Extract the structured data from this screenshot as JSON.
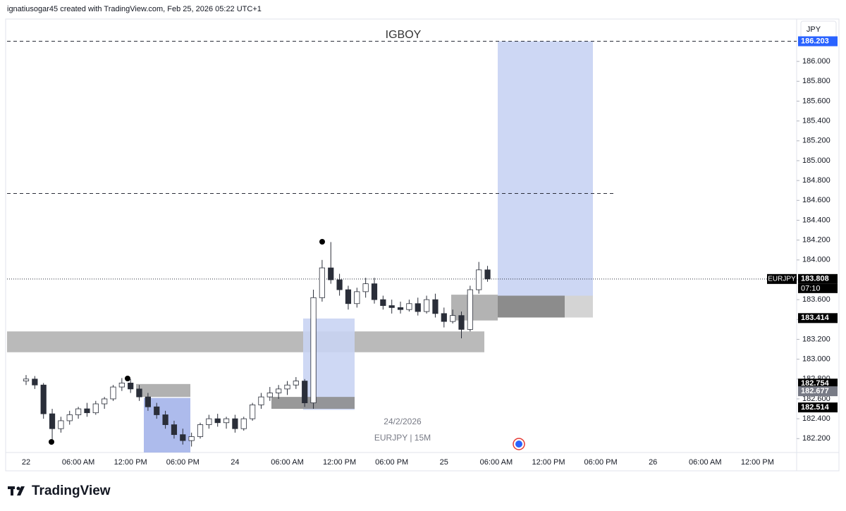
{
  "header": "ignatiusogar45 created with TradingView.com, Feb 25, 2026 05:22 UTC+1",
  "brand": "TradingView",
  "chart_data": {
    "type": "candlestick",
    "title": "IGBOY",
    "currency": "JPY",
    "watermark": [
      "24/2/2026",
      "EURJPY | 15M"
    ],
    "symbol": "EURJPY",
    "countdown": "07:10",
    "categories": [
      "22",
      null,
      null,
      null,
      null,
      null,
      "06:00 AM",
      null,
      null,
      null,
      null,
      null,
      "12:00 PM",
      null,
      null,
      null,
      null,
      null,
      "06:00 PM",
      null,
      null,
      null,
      null,
      null,
      "24",
      null,
      null,
      null,
      null,
      null,
      "06:00 AM",
      null,
      null,
      null,
      null,
      null,
      "12:00 PM",
      null,
      null,
      null,
      null,
      null,
      "06:00 PM",
      null,
      null,
      null,
      null,
      null,
      "25",
      null,
      null,
      null,
      null,
      null,
      "06:00 AM",
      null,
      null,
      null,
      null,
      null,
      "12:00 PM",
      null,
      null,
      null,
      null,
      null,
      "06:00 PM",
      null,
      null,
      null,
      null,
      null,
      "26",
      null,
      null,
      null,
      null,
      null,
      "06:00 AM",
      null,
      null,
      null,
      null,
      null,
      "12:00 PM",
      null,
      null,
      null
    ],
    "open": [
      182.78,
      182.8,
      182.74,
      182.45,
      182.3,
      182.38,
      182.44,
      182.5,
      182.46,
      182.55,
      182.6,
      182.72,
      182.76,
      182.7,
      182.62,
      182.52,
      182.44,
      182.34,
      182.24,
      182.18,
      182.22,
      182.34,
      182.4,
      182.36,
      182.4,
      182.3,
      182.4,
      182.54,
      182.62,
      182.66,
      182.7,
      182.74,
      182.78,
      182.56,
      183.62,
      183.92,
      183.8,
      183.7,
      183.56,
      183.68,
      183.76,
      183.6,
      183.54,
      183.52,
      183.5,
      183.56,
      183.48,
      183.6,
      183.46,
      183.38,
      183.44,
      183.3,
      183.7,
      183.9,
      null,
      null,
      null,
      null,
      null,
      null,
      null,
      null,
      null,
      null,
      null,
      null,
      null,
      null,
      null,
      null,
      null,
      null,
      null,
      null,
      null,
      null,
      null,
      null,
      null,
      null,
      null,
      null,
      null,
      null,
      null,
      null,
      null,
      null
    ],
    "high": [
      182.84,
      182.83,
      182.76,
      182.5,
      182.42,
      182.48,
      182.52,
      182.56,
      182.58,
      182.62,
      182.74,
      182.81,
      182.8,
      182.74,
      182.66,
      182.56,
      182.48,
      182.38,
      182.3,
      182.26,
      182.36,
      182.44,
      182.45,
      182.42,
      182.44,
      182.42,
      182.56,
      182.66,
      182.72,
      182.74,
      182.78,
      182.82,
      182.8,
      183.7,
      184.0,
      184.18,
      183.86,
      183.74,
      183.72,
      183.82,
      183.82,
      183.64,
      183.6,
      183.58,
      183.6,
      183.62,
      183.64,
      183.66,
      183.52,
      183.5,
      183.48,
      183.74,
      183.98,
      183.94,
      null,
      null,
      null,
      null,
      null,
      null,
      null,
      null,
      null,
      null,
      null,
      null,
      null,
      null,
      null,
      null,
      null,
      null,
      null,
      null,
      null,
      null,
      null,
      null,
      null,
      null,
      null,
      null,
      null,
      null,
      null,
      null,
      null,
      null
    ],
    "low": [
      182.74,
      182.7,
      182.4,
      182.17,
      182.26,
      182.34,
      182.4,
      182.42,
      182.44,
      182.5,
      182.58,
      182.68,
      182.66,
      182.58,
      182.48,
      182.4,
      182.3,
      182.2,
      182.14,
      182.12,
      182.2,
      182.3,
      182.32,
      182.3,
      182.26,
      182.28,
      182.38,
      182.5,
      182.58,
      182.6,
      182.64,
      182.7,
      182.52,
      182.5,
      183.58,
      183.76,
      183.64,
      183.5,
      183.52,
      183.62,
      183.56,
      183.5,
      183.46,
      183.46,
      183.48,
      183.44,
      183.46,
      183.42,
      183.32,
      183.36,
      183.21,
      183.28,
      183.66,
      183.78,
      null,
      null,
      null,
      null,
      null,
      null,
      null,
      null,
      null,
      null,
      null,
      null,
      null,
      null,
      null,
      null,
      null,
      null,
      null,
      null,
      null,
      null,
      null,
      null,
      null,
      null,
      null,
      null,
      null,
      null,
      null,
      null,
      null,
      null
    ],
    "close": [
      182.8,
      182.74,
      182.45,
      182.3,
      182.38,
      182.44,
      182.5,
      182.46,
      182.55,
      182.6,
      182.72,
      182.76,
      182.7,
      182.62,
      182.52,
      182.44,
      182.34,
      182.24,
      182.18,
      182.22,
      182.34,
      182.4,
      182.36,
      182.4,
      182.3,
      182.4,
      182.54,
      182.62,
      182.66,
      182.7,
      182.74,
      182.78,
      182.56,
      183.62,
      183.92,
      183.8,
      183.7,
      183.56,
      183.68,
      183.76,
      183.6,
      183.54,
      183.52,
      183.5,
      183.56,
      183.48,
      183.6,
      183.46,
      183.38,
      183.44,
      183.3,
      183.7,
      183.9,
      183.808,
      null,
      null,
      null,
      null,
      null,
      null,
      null,
      null,
      null,
      null,
      null,
      null,
      null,
      null,
      null,
      null,
      null,
      null,
      null,
      null,
      null,
      null,
      null,
      null,
      null,
      null,
      null,
      null,
      null,
      null,
      null,
      null,
      null,
      null
    ],
    "up_color": "#ffffff",
    "down_color": "#2a2e39",
    "wick_color": "#2a2e39",
    "ylim": [
      182.06,
      186.42
    ],
    "yticks": [
      {
        "value": 182.2,
        "label": "182.200"
      },
      {
        "value": 182.4,
        "label": "182.400"
      },
      {
        "value": 182.6,
        "label": "182.600"
      },
      {
        "value": 182.8,
        "label": "182.800"
      },
      {
        "value": 183.0,
        "label": "183.000"
      },
      {
        "value": 183.2,
        "label": "183.200"
      },
      {
        "value": 183.4,
        "label": "183.400"
      },
      {
        "value": 183.6,
        "label": "183.600"
      },
      {
        "value": 183.8,
        "label": "183.800"
      },
      {
        "value": 184.0,
        "label": "184.000"
      },
      {
        "value": 184.2,
        "label": "184.200"
      },
      {
        "value": 184.4,
        "label": "184.400"
      },
      {
        "value": 184.6,
        "label": "184.600"
      },
      {
        "value": 184.8,
        "label": "184.800"
      },
      {
        "value": 185.0,
        "label": "185.000"
      },
      {
        "value": 185.2,
        "label": "185.200"
      },
      {
        "value": 185.4,
        "label": "185.400"
      },
      {
        "value": 185.6,
        "label": "185.600"
      },
      {
        "value": 185.8,
        "label": "185.800"
      },
      {
        "value": 186.0,
        "label": "186.000"
      }
    ],
    "grid": false,
    "zones": [
      {
        "y": [
          183.07,
          183.28
        ],
        "color": "#b2b2b2"
      },
      {
        "y": [
          182.49,
          183.41
        ],
        "color": "#c9d4f3"
      },
      {
        "y": [
          182.5,
          182.62
        ],
        "color": "#8e8e8e"
      },
      {
        "y": [
          182.06,
          182.61
        ],
        "color": "#a4b4ea"
      },
      {
        "y": [
          182.62,
          182.75
        ],
        "color": "#a9a9a9"
      },
      {
        "y": [
          183.39,
          183.65
        ],
        "color": "#ababab"
      },
      {
        "y": [
          183.64,
          186.203
        ],
        "color": "#c8d3f3"
      },
      {
        "y": [
          183.42,
          183.64
        ],
        "color": "#7f7f7f"
      },
      {
        "y": [
          183.42,
          183.64
        ],
        "color": "#cfcfcf"
      }
    ],
    "levels": [
      186.203,
      184.67,
      183.808
    ],
    "price_labels": [
      {
        "value": 186.203,
        "label": "186.203",
        "color": "#2962ff"
      },
      {
        "value": 183.808,
        "label": "183.808",
        "color": "#000000"
      },
      {
        "value": 183.414,
        "label": "183.414",
        "color": "#000000"
      },
      {
        "value": 182.754,
        "label": "182.754",
        "color": "#000000"
      },
      {
        "value": 182.677,
        "label": "182.677",
        "color": "#787b86"
      },
      {
        "value": 182.514,
        "label": "182.514",
        "color": "#000000"
      }
    ]
  }
}
